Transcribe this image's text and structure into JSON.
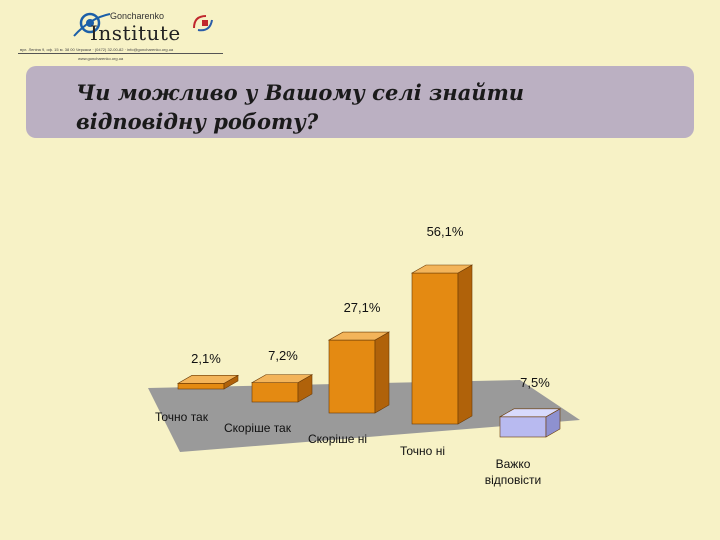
{
  "header": {
    "logo_icon": "eye-logo-icon",
    "brand_top": "Goncharenko",
    "brand_bottom": "Institute",
    "address": "вул. Леніна 9, оф. 15 м. 38 00 Черкаси · (0472) 32-00-82 · info@goncharenko.org.ua",
    "website": "www.goncharenko.org.ua",
    "partner_icon": "partner-logo-icon"
  },
  "slide": {
    "title": "Чи можливо у Вашому селі знайти відповідну роботу?"
  },
  "colors": {
    "background": "#f7f2c6",
    "title_box": "#bbb0c2",
    "bar_orange_front": "#e48a12",
    "bar_orange_top": "#f3b45a",
    "bar_orange_side": "#b0620a",
    "bar_blue_front": "#b8baf0",
    "bar_blue_top": "#d8dafc",
    "bar_blue_side": "#8e91d0",
    "floor": "#9a9a9a"
  },
  "chart_data": {
    "type": "bar",
    "categories": [
      "Точно так",
      "Скоріше так",
      "Скоріше ні",
      "Точно ні",
      "Важко відповісти"
    ],
    "values": [
      2.1,
      7.2,
      27.1,
      56.1,
      7.5
    ],
    "value_labels": [
      "2,1%",
      "7,2%",
      "27,1%",
      "56,1%",
      "7,5%"
    ],
    "bar_color_groups": [
      "orange",
      "orange",
      "orange",
      "orange",
      "blue"
    ],
    "unit": "%",
    "title": "",
    "xlabel": "",
    "ylabel": "",
    "ylim": [
      0,
      60
    ],
    "grid": false,
    "legend": "none",
    "style": "3d-perspective"
  }
}
